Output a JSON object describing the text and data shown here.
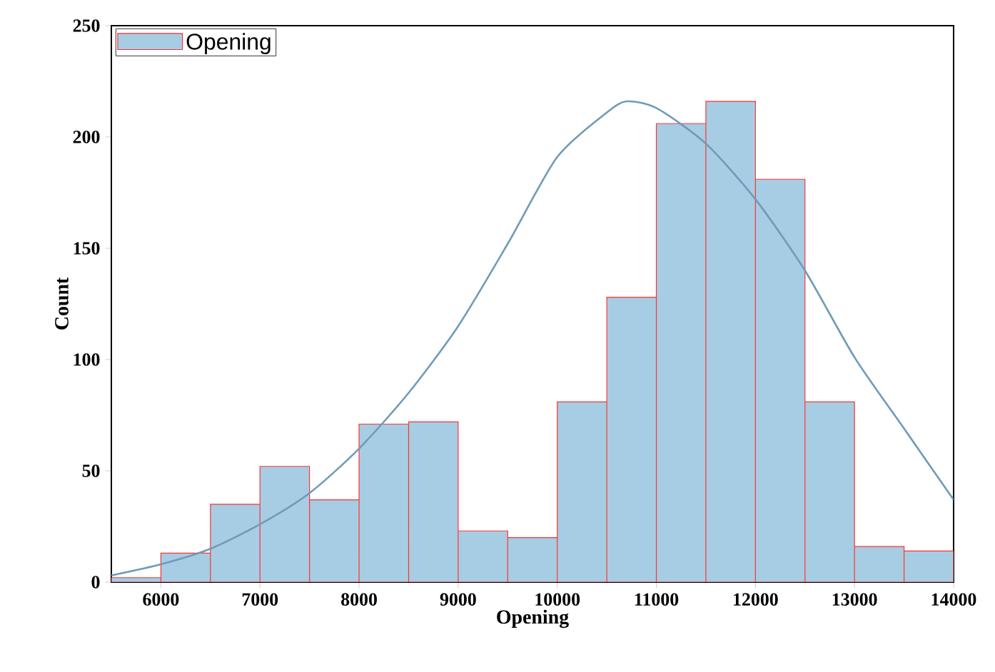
{
  "chart_data": {
    "type": "histogram",
    "xlabel": "Opening",
    "ylabel": "Count",
    "bins": [
      5500,
      6000,
      6500,
      7000,
      7500,
      8000,
      8500,
      9000,
      9500,
      10000,
      10500,
      11000,
      11500,
      12000,
      12500,
      13000,
      13500,
      14000
    ],
    "series": [
      {
        "name": "Opening",
        "color": "#a6cde3",
        "values": [
          2,
          13,
          35,
          52,
          37,
          71,
          72,
          23,
          20,
          81,
          128,
          206,
          216,
          181,
          81,
          16,
          14
        ]
      },
      {
        "type": "line",
        "color": "#6f9bb8",
        "x": [
          5500,
          6000,
          6500,
          7000,
          7500,
          8000,
          8500,
          9000,
          9500,
          10000,
          10500,
          10700,
          11000,
          11500,
          12000,
          12500,
          13000,
          13500,
          14000
        ],
        "values": [
          3,
          8,
          15,
          26,
          40,
          60,
          85,
          115,
          152,
          191,
          211,
          216,
          213,
          197,
          172,
          140,
          101,
          69,
          37
        ]
      }
    ],
    "xlim": [
      5500,
      14000
    ],
    "ylim": [
      0,
      250
    ],
    "xticks": [
      6000,
      7000,
      8000,
      9000,
      10000,
      11000,
      12000,
      13000,
      14000
    ],
    "yticks": [
      0,
      50,
      100,
      150,
      200,
      250
    ],
    "legend": "top left",
    "grid": false
  }
}
